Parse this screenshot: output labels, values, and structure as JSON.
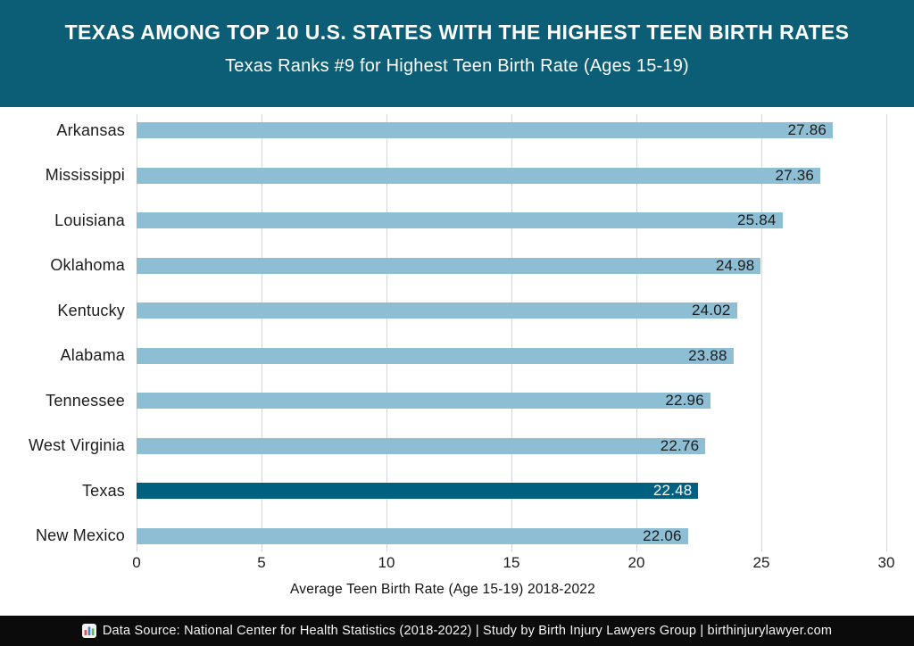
{
  "header": {
    "title": "TEXAS AMONG TOP 10 U.S. STATES WITH THE HIGHEST TEEN BIRTH RATES",
    "subtitle": "Texas Ranks #9 for Highest Teen Birth Rate (Ages 15-19)"
  },
  "chart_data": {
    "type": "bar",
    "orientation": "horizontal",
    "categories": [
      "Arkansas",
      "Mississippi",
      "Louisiana",
      "Oklahoma",
      "Kentucky",
      "Alabama",
      "Tennessee",
      "West Virginia",
      "Texas",
      "New Mexico"
    ],
    "values": [
      27.86,
      27.36,
      25.84,
      24.98,
      24.02,
      23.88,
      22.96,
      22.76,
      22.48,
      22.06
    ],
    "highlight_category": "Texas",
    "xlabel": "Average Teen Birth Rate (Age 15-19) 2018-2022",
    "xlim": [
      0,
      30
    ],
    "xticks": [
      0,
      5,
      10,
      15,
      20,
      25,
      30
    ],
    "grid": "vertical",
    "legend": "none",
    "colors": {
      "bar": "#8ebed3",
      "highlight_bar": "#006080",
      "value_label": "#1c1c1c",
      "highlight_value_label": "#ffffff",
      "gridline": "#d8d8d8"
    }
  },
  "footer": {
    "icon": "bar-chart-icon",
    "text": "Data Source: National Center for Health Statistics (2018-2022) | Study by Birth Injury Lawyers Group | birthinjurylawyer.com"
  },
  "colors": {
    "header_bg": "#0b5e76",
    "header_text": "#ffffff",
    "footer_bg": "#0b0b0b",
    "footer_text": "#f5f5f5"
  }
}
